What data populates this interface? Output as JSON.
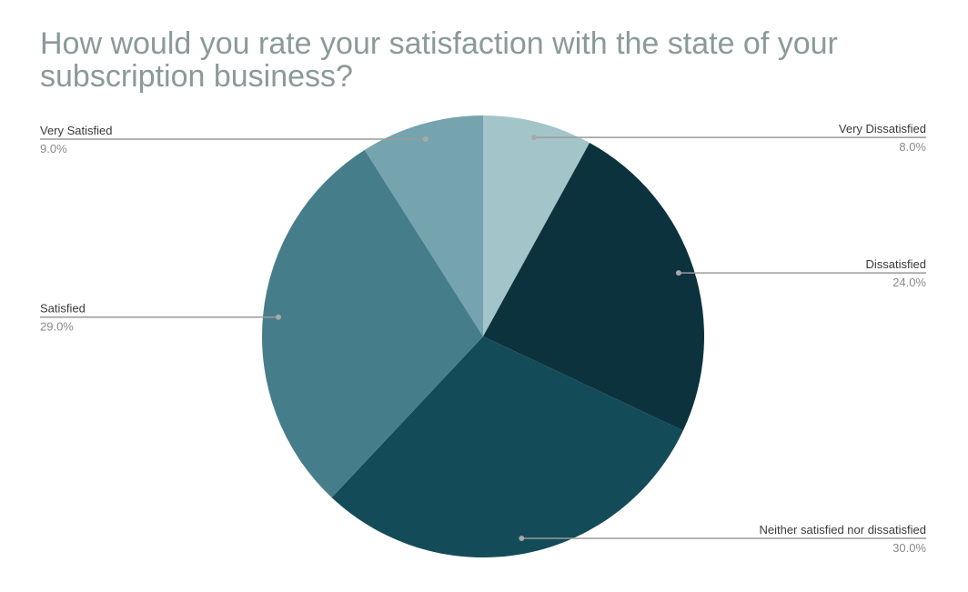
{
  "chart_data": {
    "type": "pie",
    "title": "How would you rate your satisfaction with the state of your subscription business?",
    "slices": [
      {
        "label": "Very Dissatisfied",
        "value": 8.0,
        "pct_text": "8.0%",
        "color": "#a3c5c9",
        "label_side": "right"
      },
      {
        "label": "Dissatisfied",
        "value": 24.0,
        "pct_text": "24.0%",
        "color": "#0c333d",
        "label_side": "right"
      },
      {
        "label": "Neither satisfied nor dissatisfied",
        "value": 30.0,
        "pct_text": "30.0%",
        "color": "#134b59",
        "label_side": "right"
      },
      {
        "label": "Satisfied",
        "value": 29.0,
        "pct_text": "29.0%",
        "color": "#457e8a",
        "label_side": "left"
      },
      {
        "label": "Very Satisfied",
        "value": 9.0,
        "pct_text": "9.0%",
        "color": "#75a3ae",
        "label_side": "left"
      }
    ],
    "legend": "none"
  }
}
